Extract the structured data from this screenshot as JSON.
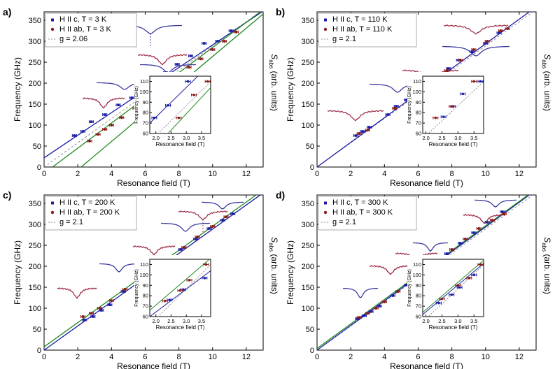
{
  "axis_labels": {
    "xlabel": "Resonance field (T)",
    "ylabel": "Frequency (GHz)",
    "right_label_main": "S",
    "right_label_sub": "abs",
    "right_label_rest": " (arb. units)",
    "inset_xlabel": "Resonance field (T)",
    "inset_ylabel": "Frequency (GHz)"
  },
  "colors": {
    "blue": "#1a1aa6",
    "red": "#8b1a1a",
    "green": "#1f8a1f",
    "gray": "#8c8c8c",
    "spectrum_blue": "#3a3aa0",
    "spectrum_red": "#a0304a"
  },
  "chart_data": [
    {
      "panel": "a)",
      "type": "scatter",
      "xlim": [
        0,
        13
      ],
      "ylim": [
        0,
        370
      ],
      "xticks": [
        0,
        2,
        4,
        6,
        8,
        10,
        12
      ],
      "yticks": [
        0,
        50,
        100,
        150,
        200,
        250,
        300,
        350
      ],
      "legend": [
        "H II c, T = 3 K",
        "H II ab, T = 3 K",
        "g = 2.06"
      ],
      "series": [
        {
          "name": "H II c, T = 3 K",
          "x": [
            1.8,
            2.3,
            2.8,
            3.6,
            4.4,
            5.2,
            6.0,
            6.6,
            7.2,
            7.9,
            8.7,
            9.5,
            10.3,
            11.1
          ],
          "y": [
            75,
            85,
            108,
            125,
            148,
            165,
            185,
            205,
            225,
            245,
            265,
            295,
            300,
            325
          ]
        },
        {
          "name": "H II ab, T = 3 K",
          "x": [
            2.7,
            3.2,
            3.6,
            4.0,
            4.6,
            5.4,
            6.0,
            6.7,
            7.3,
            7.9,
            8.6,
            9.3,
            10.0,
            10.7,
            11.4
          ],
          "y": [
            62,
            78,
            90,
            100,
            118,
            140,
            158,
            178,
            200,
            218,
            238,
            258,
            280,
            300,
            322
          ]
        }
      ],
      "fits": [
        {
          "x": [
            0,
            13
          ],
          "y": [
            22,
            372
          ]
        },
        {
          "x": [
            2.2,
            13
          ],
          "y": [
            0,
            365
          ]
        },
        {
          "x": [
            0.5,
            13
          ],
          "y": [
            0,
            375
          ]
        }
      ],
      "inset": {
        "xlim": [
          1.8,
          3.8
        ],
        "ylim": [
          60,
          115
        ],
        "xticks": [
          2.0,
          2.5,
          3.0,
          3.5
        ],
        "yticks": [
          60,
          70,
          80,
          90,
          100,
          110
        ],
        "series": [
          {
            "name": "H II c, T = 3 K",
            "x": [
              1.95,
              2.4,
              3.05
            ],
            "y": [
              75,
              87,
              110
            ]
          },
          {
            "name": "H II ab, T = 3 K",
            "x": [
              2.75,
              3.25,
              3.7
            ],
            "y": [
              75,
              97,
              110
            ]
          }
        ],
        "fits": [
          {
            "x": [
              1.8,
              3.8
            ],
            "y": [
              70,
              127
            ]
          },
          {
            "x": [
              2.4,
              3.8
            ],
            "y": [
              60,
              104
            ]
          }
        ]
      }
    },
    {
      "panel": "b)",
      "type": "scatter",
      "xlim": [
        0,
        13
      ],
      "ylim": [
        0,
        370
      ],
      "xticks": [
        0,
        2,
        4,
        6,
        8,
        10,
        12
      ],
      "yticks": [
        0,
        50,
        100,
        150,
        200,
        250,
        300,
        350
      ],
      "legend": [
        "H II c, T = 110 K",
        "H II ab, T = 110 K",
        "g = 2.1"
      ],
      "series": [
        {
          "name": "H II c, T = 110 K",
          "x": [
            2.3,
            2.7,
            3.1,
            4.2,
            4.7,
            5.3,
            5.9,
            6.3,
            7.0,
            7.8,
            8.4,
            9.2,
            10.0,
            10.8
          ],
          "y": [
            75,
            85,
            95,
            125,
            145,
            160,
            175,
            185,
            210,
            235,
            255,
            275,
            295,
            320
          ]
        },
        {
          "name": "H II ab, T = 110 K",
          "x": [
            2.5,
            3.0,
            4.6,
            5.6,
            6.2,
            7.0,
            7.7,
            8.5,
            9.3,
            10.1,
            10.9,
            11.3
          ],
          "y": [
            80,
            88,
            140,
            170,
            185,
            210,
            230,
            255,
            280,
            300,
            325,
            330
          ]
        }
      ],
      "fits": [
        {
          "x": [
            0,
            13
          ],
          "y": [
            0,
            382
          ]
        }
      ],
      "inset": {
        "xlim": [
          1.9,
          3.8
        ],
        "ylim": [
          60,
          115
        ],
        "xticks": [
          2.0,
          2.5,
          3.0,
          3.5
        ],
        "yticks": [
          60,
          70,
          80,
          90,
          100,
          110
        ],
        "series": [
          {
            "name": "H II c, T = 110 K",
            "x": [
              2.55,
              2.85,
              3.15,
              3.7
            ],
            "y": [
              76,
              86,
              98,
              110
            ]
          },
          {
            "name": "H II ab, T = 110 K",
            "x": [
              2.3,
              2.8,
              3.5
            ],
            "y": [
              75,
              86,
              110
            ]
          }
        ],
        "fits": []
      }
    },
    {
      "panel": "c)",
      "type": "scatter",
      "xlim": [
        0,
        13
      ],
      "ylim": [
        0,
        370
      ],
      "xticks": [
        0,
        2,
        4,
        6,
        8,
        10,
        12
      ],
      "yticks": [
        0,
        50,
        100,
        150,
        200,
        250,
        300,
        350
      ],
      "legend": [
        "H II c, T = 200 K",
        "H II ab, T = 200 K",
        "g = 2.1"
      ],
      "series": [
        {
          "name": "H II c, T = 200 K",
          "x": [
            2.4,
            2.9,
            3.4,
            3.9,
            4.7,
            5.6,
            6.4,
            7.3,
            8.1,
            9.0,
            9.8,
            10.6,
            11.2
          ],
          "y": [
            72,
            80,
            95,
            108,
            140,
            165,
            190,
            215,
            240,
            265,
            290,
            310,
            325
          ]
        },
        {
          "name": "H II ab, T = 200 K",
          "x": [
            2.3,
            2.8,
            3.3,
            4.0,
            4.8,
            5.7,
            6.6,
            7.4,
            8.3,
            9.1,
            10.0,
            10.8
          ],
          "y": [
            80,
            88,
            100,
            118,
            145,
            170,
            195,
            220,
            245,
            270,
            295,
            318
          ]
        }
      ],
      "fits": [
        {
          "x": [
            0,
            13
          ],
          "y": [
            0,
            375
          ]
        },
        {
          "x": [
            0,
            13
          ],
          "y": [
            8,
            382
          ]
        }
      ],
      "inset": {
        "xlim": [
          1.8,
          3.8
        ],
        "ylim": [
          60,
          115
        ],
        "xticks": [
          2.0,
          2.5,
          3.0,
          3.5
        ],
        "yticks": [
          60,
          70,
          80,
          90,
          100,
          110
        ],
        "series": [
          {
            "name": "H II c, T = 200 K",
            "x": [
              2.45,
              2.9,
              3.6
            ],
            "y": [
              76,
              86,
              97
            ]
          },
          {
            "name": "H II ab, T = 200 K",
            "x": [
              2.3,
              2.8,
              3.1,
              3.65
            ],
            "y": [
              75,
              85,
              95,
              110
            ]
          }
        ],
        "fits": [
          {
            "x": [
              1.8,
              3.8
            ],
            "y": [
              60,
              104
            ]
          },
          {
            "x": [
              1.8,
              3.8
            ],
            "y": [
              66,
              116
            ]
          }
        ]
      }
    },
    {
      "panel": "d)",
      "type": "scatter",
      "xlim": [
        0,
        13
      ],
      "ylim": [
        0,
        370
      ],
      "xticks": [
        0,
        2,
        4,
        6,
        8,
        10,
        12
      ],
      "yticks": [
        0,
        50,
        100,
        150,
        200,
        250,
        300,
        350
      ],
      "legend": [
        "H II c, T = 300 K",
        "H II ab, T = 300 K",
        "g = 2.1"
      ],
      "series": [
        {
          "name": "H II c, T = 300 K",
          "x": [
            2.4,
            2.8,
            3.2,
            3.7,
            4.5,
            5.3,
            6.1,
            6.9,
            7.7,
            8.5,
            9.3,
            10.1,
            11.0
          ],
          "y": [
            75,
            82,
            92,
            105,
            130,
            155,
            180,
            205,
            230,
            255,
            280,
            305,
            330
          ]
        },
        {
          "name": "H II ab, T = 300 K",
          "x": [
            2.5,
            3.0,
            3.5,
            4.0,
            4.8,
            5.6,
            6.4,
            7.2,
            8.0,
            8.8,
            9.6,
            10.4,
            11.1
          ],
          "y": [
            78,
            88,
            100,
            115,
            140,
            165,
            190,
            215,
            240,
            265,
            290,
            310,
            325
          ]
        }
      ],
      "fits": [
        {
          "x": [
            0,
            13
          ],
          "y": [
            0,
            382
          ]
        },
        {
          "x": [
            0,
            13
          ],
          "y": [
            4,
            384
          ]
        }
      ],
      "inset": {
        "xlim": [
          1.9,
          3.8
        ],
        "ylim": [
          60,
          115
        ],
        "xticks": [
          2.0,
          2.5,
          3.0,
          3.5
        ],
        "yticks": [
          60,
          70,
          80,
          90,
          100,
          110
        ],
        "series": [
          {
            "name": "H II c, T = 300 K",
            "x": [
              2.4,
              2.8,
              3.05,
              3.5
            ],
            "y": [
              73,
              81,
              88,
              100
            ]
          },
          {
            "name": "H II ab, T = 300 K",
            "x": [
              2.5,
              3.0,
              3.35,
              3.7
            ],
            "y": [
              77,
              90,
              97,
              110
            ]
          }
        ],
        "fits": [
          {
            "x": [
              1.9,
              3.8
            ],
            "y": [
              62,
              111
            ]
          },
          {
            "x": [
              1.9,
              3.8
            ],
            "y": [
              64,
              114
            ]
          }
        ]
      }
    }
  ]
}
